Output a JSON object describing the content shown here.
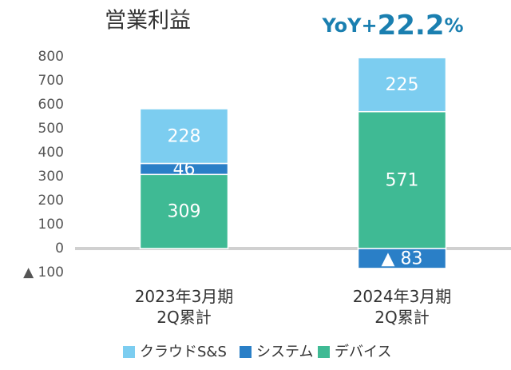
{
  "chart_data": {
    "type": "stacked-bar",
    "title": "営業利益",
    "annotation": [
      "YoY+",
      "22.2",
      "%"
    ],
    "categories": [
      [
        "2023年3月期",
        "2Q累計"
      ],
      [
        "2024年3月期",
        "2Q累計"
      ]
    ],
    "series": [
      {
        "name": "クラウドS&S",
        "color": "#7ccdf0",
        "values": [
          228,
          225
        ]
      },
      {
        "name": "システム",
        "color": "#2a7fc7",
        "values": [
          46,
          -83
        ],
        "value_labels": [
          "46",
          "▲ 83"
        ]
      },
      {
        "name": "デバイス",
        "color": "#3fba94",
        "values": [
          309,
          571
        ]
      }
    ],
    "ylim": [
      -100,
      800
    ],
    "yticks": [
      {
        "value": -100,
        "label": "▲ 100"
      },
      0,
      100,
      200,
      300,
      400,
      500,
      600,
      700,
      800
    ],
    "legend": "bottom"
  }
}
